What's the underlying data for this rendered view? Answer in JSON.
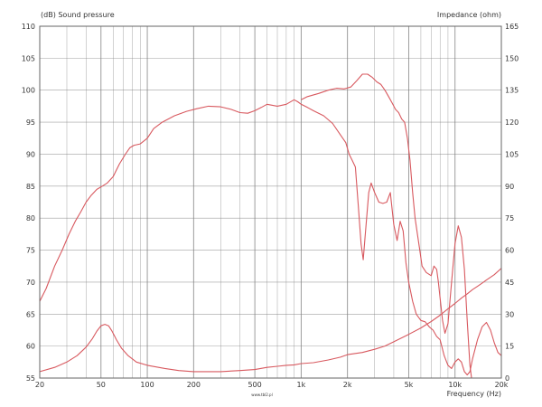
{
  "chart_data": {
    "type": "line",
    "y_axis_label": "(dB)  Sound pressure",
    "y2_axis_label": "Impedance  (ohm)",
    "x_axis_label": "Frequency  (Hz)",
    "footer_text": "www.tbl2.pl",
    "x_scale": "log",
    "xlim": [
      20,
      20000
    ],
    "ylim": [
      55,
      110
    ],
    "y2lim": [
      0,
      165
    ],
    "grid": true,
    "x_ticks": [
      {
        "v": 20,
        "label": "20"
      },
      {
        "v": 50,
        "label": "50"
      },
      {
        "v": 100,
        "label": "100"
      },
      {
        "v": 200,
        "label": "200"
      },
      {
        "v": 500,
        "label": "500"
      },
      {
        "v": 1000,
        "label": "1k"
      },
      {
        "v": 2000,
        "label": "2k"
      },
      {
        "v": 5000,
        "label": "5k"
      },
      {
        "v": 10000,
        "label": "10k"
      },
      {
        "v": 20000,
        "label": "20k"
      }
    ],
    "y_ticks": [
      55,
      60,
      65,
      70,
      75,
      80,
      85,
      90,
      95,
      100,
      105,
      110
    ],
    "y2_ticks": [
      0,
      15,
      30,
      45,
      60,
      75,
      90,
      105,
      120,
      135,
      150,
      165
    ],
    "colors": {
      "curve": "#d8595f",
      "grid": "#808080",
      "axis_text": "#333333"
    },
    "series": [
      {
        "axis": "left",
        "points": [
          [
            20,
            67
          ],
          [
            22,
            69
          ],
          [
            25,
            72.5
          ],
          [
            28,
            75
          ],
          [
            31,
            77.5
          ],
          [
            34,
            79.5
          ],
          [
            37,
            81
          ],
          [
            40,
            82.5
          ],
          [
            43,
            83.5
          ],
          [
            47,
            84.5
          ],
          [
            51,
            85
          ],
          [
            55,
            85.5
          ],
          [
            60,
            86.5
          ],
          [
            66,
            88.5
          ],
          [
            72,
            90
          ],
          [
            77,
            91
          ],
          [
            82,
            91.4
          ],
          [
            90,
            91.6
          ],
          [
            100,
            92.5
          ],
          [
            110,
            94
          ],
          [
            125,
            95
          ],
          [
            150,
            96
          ],
          [
            180,
            96.7
          ],
          [
            210,
            97.1
          ],
          [
            250,
            97.5
          ],
          [
            300,
            97.4
          ],
          [
            350,
            97
          ],
          [
            400,
            96.5
          ],
          [
            450,
            96.4
          ],
          [
            500,
            96.8
          ],
          [
            550,
            97.3
          ],
          [
            600,
            97.8
          ],
          [
            700,
            97.5
          ],
          [
            800,
            97.8
          ],
          [
            900,
            98.5
          ],
          [
            950,
            98.2
          ],
          [
            1000,
            97.8
          ],
          [
            1100,
            97.3
          ],
          [
            1200,
            96.8
          ],
          [
            1400,
            96
          ],
          [
            1600,
            94.8
          ],
          [
            1800,
            93
          ],
          [
            1950,
            91.8
          ],
          [
            2050,
            90
          ],
          [
            2150,
            89
          ],
          [
            2250,
            88
          ],
          [
            2350,
            82
          ],
          [
            2450,
            76
          ],
          [
            2530,
            73.5
          ],
          [
            2600,
            77
          ],
          [
            2750,
            84
          ],
          [
            2850,
            85.5
          ],
          [
            3000,
            84
          ],
          [
            3200,
            82.5
          ],
          [
            3400,
            82.3
          ],
          [
            3600,
            82.5
          ],
          [
            3800,
            84
          ],
          [
            4000,
            79
          ],
          [
            4200,
            76.5
          ],
          [
            4400,
            79.5
          ],
          [
            4600,
            78
          ],
          [
            4800,
            73
          ],
          [
            5000,
            70
          ],
          [
            5300,
            67
          ],
          [
            5600,
            65
          ],
          [
            6000,
            64
          ],
          [
            6400,
            63.8
          ],
          [
            6800,
            63
          ],
          [
            7200,
            62.5
          ],
          [
            7600,
            61.5
          ],
          [
            8000,
            61
          ],
          [
            8500,
            58.5
          ],
          [
            9000,
            57
          ],
          [
            9500,
            56.5
          ],
          [
            10000,
            57.5
          ],
          [
            10500,
            58
          ],
          [
            11000,
            57.5
          ],
          [
            11500,
            56
          ],
          [
            12000,
            55.5
          ],
          [
            12500,
            56
          ],
          [
            13000,
            58
          ],
          [
            14000,
            61
          ],
          [
            15000,
            63
          ],
          [
            16000,
            63.7
          ],
          [
            17000,
            62.5
          ],
          [
            18000,
            60.5
          ],
          [
            19000,
            59
          ],
          [
            20000,
            58.5
          ]
        ]
      },
      {
        "axis": "left",
        "points": [
          [
            1000,
            98.5
          ],
          [
            1100,
            99
          ],
          [
            1300,
            99.5
          ],
          [
            1500,
            100
          ],
          [
            1700,
            100.3
          ],
          [
            1900,
            100.2
          ],
          [
            2100,
            100.5
          ],
          [
            2300,
            101.5
          ],
          [
            2500,
            102.5
          ],
          [
            2700,
            102.5
          ],
          [
            2900,
            102
          ],
          [
            3100,
            101.3
          ],
          [
            3300,
            100.9
          ],
          [
            3500,
            100
          ],
          [
            3700,
            99
          ],
          [
            3900,
            98
          ],
          [
            4100,
            97
          ],
          [
            4300,
            96.5
          ],
          [
            4500,
            95.5
          ],
          [
            4700,
            95
          ],
          [
            4900,
            92.5
          ],
          [
            5100,
            89
          ],
          [
            5300,
            84
          ],
          [
            5500,
            80
          ],
          [
            5700,
            77.5
          ],
          [
            5900,
            75
          ],
          [
            6100,
            72.5
          ],
          [
            6500,
            71.5
          ],
          [
            7000,
            71
          ],
          [
            7300,
            72.5
          ],
          [
            7600,
            72
          ],
          [
            7800,
            70
          ],
          [
            8000,
            67.5
          ],
          [
            8300,
            64
          ],
          [
            8600,
            62
          ],
          [
            9000,
            63.5
          ],
          [
            9500,
            70
          ],
          [
            10000,
            76
          ],
          [
            10500,
            78.8
          ],
          [
            11000,
            77
          ],
          [
            11500,
            72
          ],
          [
            12000,
            64
          ],
          [
            12500,
            57
          ],
          [
            12800,
            55
          ]
        ]
      },
      {
        "axis": "right",
        "points": [
          [
            20,
            3
          ],
          [
            25,
            5
          ],
          [
            30,
            7.5
          ],
          [
            35,
            10.5
          ],
          [
            40,
            14.5
          ],
          [
            44,
            18.5
          ],
          [
            47,
            22
          ],
          [
            50,
            24.5
          ],
          [
            53,
            25.2
          ],
          [
            56,
            24.5
          ],
          [
            59,
            22
          ],
          [
            63,
            18
          ],
          [
            68,
            14
          ],
          [
            75,
            10.5
          ],
          [
            85,
            7.5
          ],
          [
            100,
            6
          ],
          [
            130,
            4.5
          ],
          [
            160,
            3.5
          ],
          [
            200,
            3
          ],
          [
            300,
            3
          ],
          [
            400,
            3.5
          ],
          [
            500,
            4
          ],
          [
            600,
            5
          ],
          [
            700,
            5.5
          ],
          [
            800,
            6
          ],
          [
            900,
            6.2
          ],
          [
            1000,
            6.8
          ],
          [
            1200,
            7.2
          ],
          [
            1500,
            8.5
          ],
          [
            1800,
            9.8
          ],
          [
            2000,
            11
          ],
          [
            2500,
            12
          ],
          [
            3000,
            13.5
          ],
          [
            3500,
            15
          ],
          [
            4000,
            17
          ],
          [
            5000,
            20.5
          ],
          [
            6000,
            23.5
          ],
          [
            7000,
            26.5
          ],
          [
            8000,
            29.5
          ],
          [
            9000,
            32.5
          ],
          [
            10000,
            35
          ],
          [
            11000,
            37.5
          ],
          [
            12000,
            39.5
          ],
          [
            13000,
            41.5
          ],
          [
            14000,
            43
          ],
          [
            15000,
            44.5
          ],
          [
            16000,
            46
          ],
          [
            18000,
            48.5
          ],
          [
            20000,
            51.5
          ]
        ]
      }
    ]
  }
}
